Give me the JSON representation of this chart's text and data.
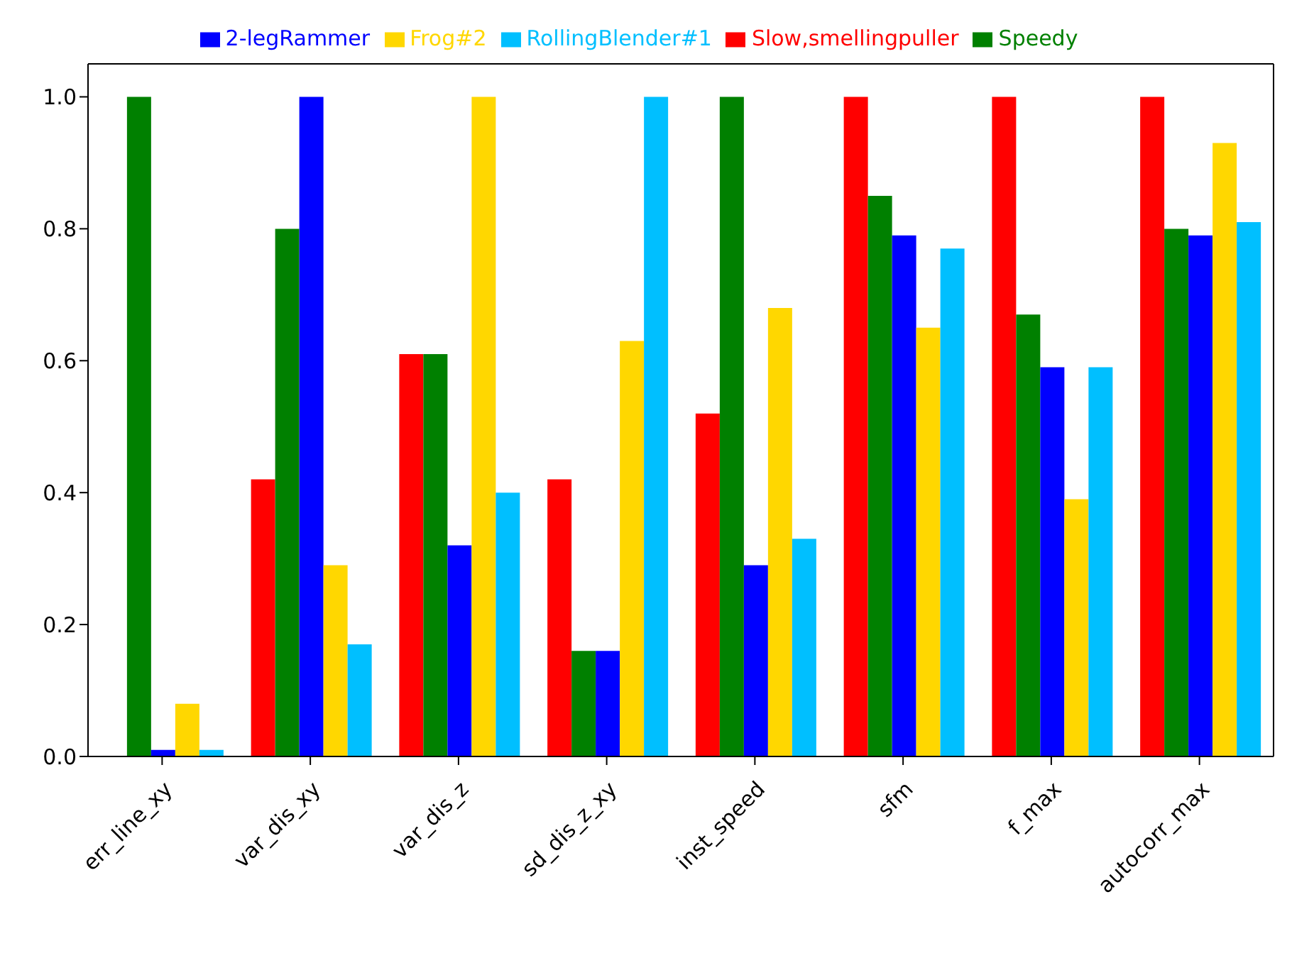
{
  "chart_data": {
    "type": "bar",
    "categories": [
      "err_line_xy",
      "var_dis_xy",
      "var_dis_z",
      "sd_dis_z_xy",
      "inst_speed",
      "sfm",
      "f_max",
      "autocorr_max"
    ],
    "series": [
      {
        "name": "Slow,smellingpuller",
        "color": "#ff0000",
        "values": [
          0,
          0.42,
          0.61,
          0.42,
          0.52,
          1.0,
          1.0,
          1.0
        ]
      },
      {
        "name": "Speedy",
        "color": "#008000",
        "values": [
          1.0,
          0.8,
          0.61,
          0.16,
          1.0,
          0.85,
          0.67,
          0.8
        ]
      },
      {
        "name": "2-legRammer",
        "color": "#0000ff",
        "values": [
          0.01,
          1.0,
          0.32,
          0.16,
          0.29,
          0.79,
          0.59,
          0.79
        ]
      },
      {
        "name": "Frog#2",
        "color": "#ffd700",
        "values": [
          0.08,
          0.29,
          1.0,
          0.63,
          0.68,
          0.65,
          0.39,
          0.93
        ]
      },
      {
        "name": "RollingBlender#1",
        "color": "#00bfff",
        "values": [
          0.01,
          0.17,
          0.4,
          1.0,
          0.33,
          0.77,
          0.59,
          0.81
        ]
      }
    ],
    "ylim": [
      0,
      1.05
    ],
    "yticks": [
      {
        "value": 0,
        "label": "0.0"
      },
      {
        "value": 0.2,
        "label": "0.2"
      },
      {
        "value": 0.4,
        "label": "0.4"
      },
      {
        "value": 0.6,
        "label": "0.6"
      },
      {
        "value": 0.8,
        "label": "0.8"
      },
      {
        "value": 1,
        "label": "1.0"
      }
    ],
    "grid": false,
    "legend": "top"
  }
}
